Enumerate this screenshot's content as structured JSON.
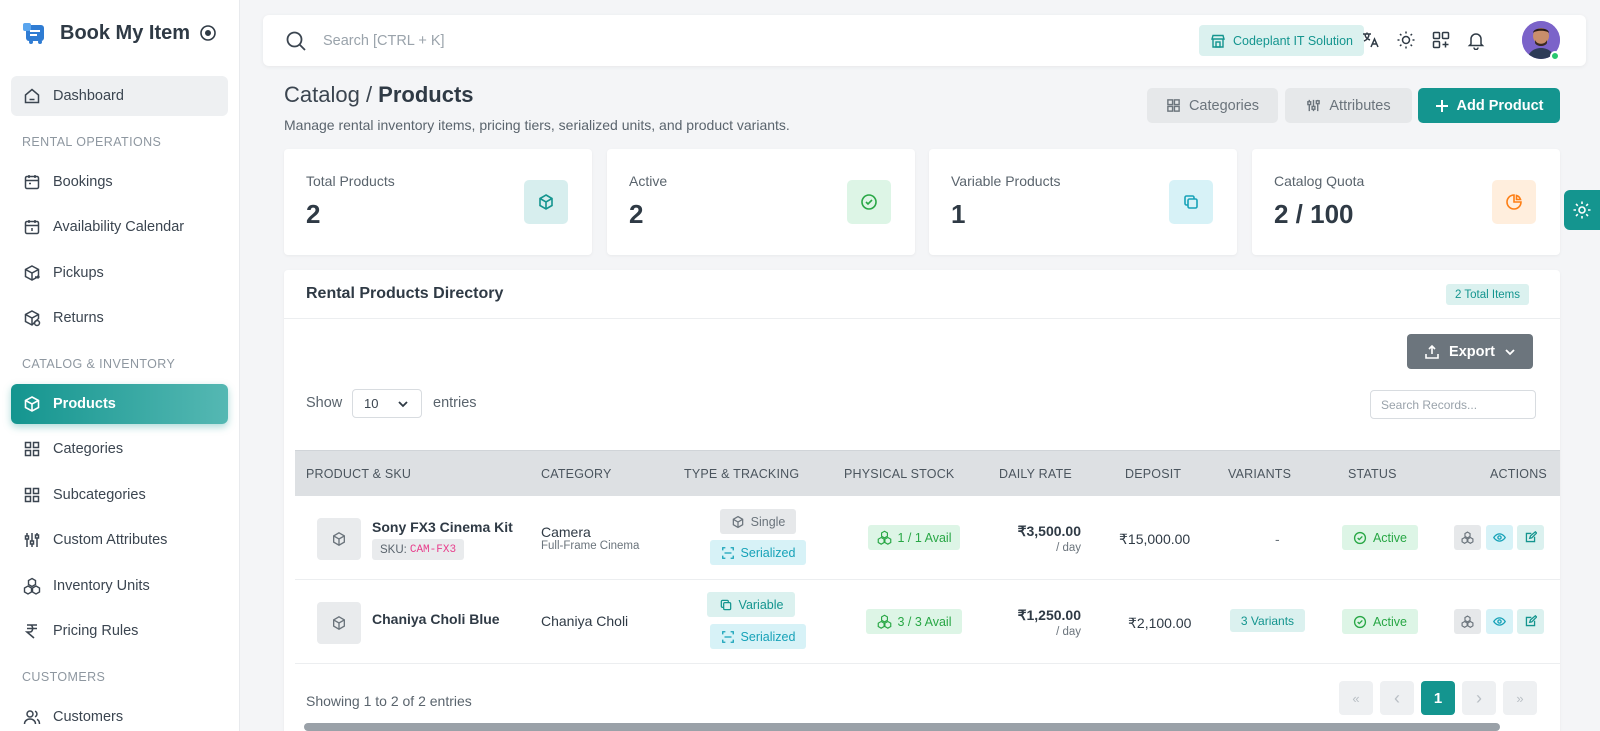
{
  "brand": {
    "name": "Book My Item"
  },
  "sidebar": {
    "items_top": [
      {
        "label": "Dashboard",
        "icon": "home-icon"
      }
    ],
    "sections": [
      {
        "title": "RENTAL OPERATIONS",
        "items": [
          {
            "label": "Bookings",
            "icon": "calendar-icon"
          },
          {
            "label": "Availability Calendar",
            "icon": "calendar-clock-icon"
          },
          {
            "label": "Pickups",
            "icon": "package-out-icon"
          },
          {
            "label": "Returns",
            "icon": "package-return-icon"
          }
        ]
      },
      {
        "title": "CATALOG & INVENTORY",
        "items": [
          {
            "label": "Products",
            "icon": "cube-icon",
            "active": true
          },
          {
            "label": "Categories",
            "icon": "grid-icon"
          },
          {
            "label": "Subcategories",
            "icon": "grid-icon"
          },
          {
            "label": "Custom Attributes",
            "icon": "sliders-icon"
          },
          {
            "label": "Inventory Units",
            "icon": "boxes-icon"
          },
          {
            "label": "Pricing Rules",
            "icon": "rupee-icon"
          }
        ]
      },
      {
        "title": "CUSTOMERS",
        "items": [
          {
            "label": "Customers",
            "icon": "users-icon"
          }
        ]
      }
    ]
  },
  "topbar": {
    "search_placeholder": "Search [CTRL + K]",
    "company": "Codeplant IT Solution"
  },
  "header": {
    "breadcrumb_parent": "Catalog / ",
    "title": "Products",
    "subtitle": "Manage rental inventory items, pricing tiers, serialized units, and product variants.",
    "categories_label": "Categories",
    "attributes_label": "Attributes",
    "add_label": "Add Product"
  },
  "stats": [
    {
      "label": "Total Products",
      "value": "2",
      "icon": "cube-icon",
      "color": "#14958f",
      "bg": "#d7eeee"
    },
    {
      "label": "Active",
      "value": "2",
      "icon": "check-circle-icon",
      "color": "#28a745",
      "bg": "#ddf5e6"
    },
    {
      "label": "Variable Products",
      "value": "1",
      "icon": "copy-icon",
      "color": "#17a2b8",
      "bg": "#d7f2f7"
    },
    {
      "label": "Catalog Quota",
      "value": "2 / 100",
      "icon": "pie-chart-icon",
      "color": "#fd7e14",
      "bg": "#ffeedd"
    }
  ],
  "directory": {
    "title": "Rental Products Directory",
    "total_badge": "2 Total Items",
    "export_label": "Export",
    "show_label": "Show",
    "page_size": "10",
    "entries_label": "entries",
    "search_placeholder": "Search Records...",
    "columns": [
      "PRODUCT & SKU",
      "CATEGORY",
      "TYPE & TRACKING",
      "PHYSICAL STOCK",
      "DAILY RATE",
      "DEPOSIT",
      "VARIANTS",
      "STATUS",
      "ACTIONS"
    ],
    "rows": [
      {
        "name": "Sony FX3 Cinema Kit",
        "sku_label": "SKU:",
        "sku": "CAM-FX3",
        "category": "Camera",
        "subcategory": "Full-Frame Cinema",
        "type": "Single",
        "tracking": "Serialized",
        "stock": "1 / 1 Avail",
        "rate": "₹3,500.00",
        "rate_unit": "/ day",
        "deposit": "₹15,000.00",
        "variants": "-",
        "status": "Active"
      },
      {
        "name": "Chaniya Choli Blue",
        "sku_label": "",
        "sku": "",
        "category": "Chaniya Choli",
        "subcategory": "",
        "type": "Variable",
        "tracking": "Serialized",
        "stock": "3 / 3 Avail",
        "rate": "₹1,250.00",
        "rate_unit": "/ day",
        "deposit": "₹2,100.00",
        "variants": "3 Variants",
        "status": "Active"
      }
    ],
    "showing": "Showing 1 to 2 of 2 entries",
    "pagination": {
      "first": "«",
      "prev": "‹",
      "current": "1",
      "next": "›",
      "last": "»"
    }
  }
}
